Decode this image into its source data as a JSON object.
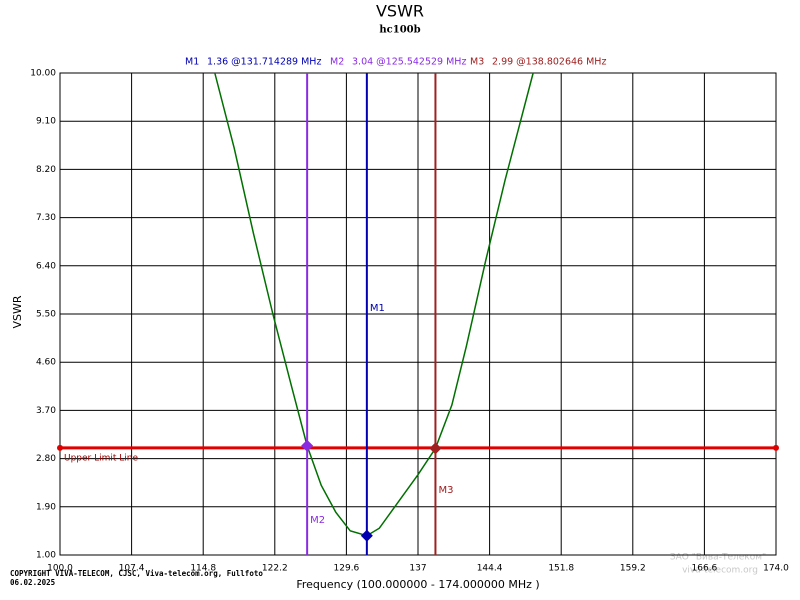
{
  "chart_data": {
    "type": "line",
    "title": "VSWR",
    "subtitle": "hc100b",
    "xlabel": "Frequency (100.000000 - 174.000000 MHz )",
    "ylabel": "VSWR",
    "xlim": [
      100,
      174
    ],
    "ylim": [
      1,
      10
    ],
    "xticks": [
      {
        "value": 100,
        "label": "100.0"
      },
      107.4,
      114.8,
      122.2,
      129.6,
      137,
      {
        "value": 144.4,
        "label": "144.4"
      },
      151.8,
      159.2,
      166.6,
      {
        "value": 174,
        "label": "174.0"
      }
    ],
    "yticks": [
      {
        "value": 1,
        "label": "1.00"
      },
      {
        "value": 1.9,
        "label": "1.90"
      },
      {
        "value": 2.8,
        "label": "2.80"
      },
      {
        "value": 3.7,
        "label": "3.70"
      },
      {
        "value": 4.6,
        "label": "4.60"
      },
      {
        "value": 5.5,
        "label": "5.50"
      },
      {
        "value": 6.4,
        "label": "6.40"
      },
      {
        "value": 7.3,
        "label": "7.30"
      },
      {
        "value": 8.2,
        "label": "8.20"
      },
      {
        "value": 9.1,
        "label": "9.10"
      },
      {
        "value": 10,
        "label": "10.00"
      }
    ],
    "grid": true,
    "series": [
      {
        "color": "#007000",
        "x": [
          116.0,
          118,
          120,
          122,
          124,
          125.54,
          127,
          128.5,
          130,
          131.71,
          133,
          135,
          137,
          138.8,
          140.5,
          142,
          144,
          146,
          148.9
        ],
        "values": [
          10,
          8.6,
          7.0,
          5.5,
          4.1,
          3.04,
          2.3,
          1.8,
          1.45,
          1.36,
          1.5,
          2.0,
          2.5,
          2.99,
          3.8,
          4.9,
          6.5,
          8.0,
          10
        ]
      }
    ],
    "markers": [
      {
        "name": "M1",
        "readout": "1.36 @131.714289 MHz",
        "x": 131.714289,
        "value": 1.36,
        "color": "#0000b0"
      },
      {
        "name": "M2",
        "readout": "3.04 @125.542529 MHz",
        "x": 125.542529,
        "value": 3.04,
        "color": "#8a2be2"
      },
      {
        "name": "M3",
        "readout": "2.99 @138.802646 MHz",
        "x": 138.802646,
        "value": 2.99,
        "color": "#a02020"
      }
    ],
    "limit_line": {
      "label": "Upper Limit Line",
      "value": 3.0,
      "color": "#e00000"
    },
    "footer": [
      "COPYRIGHT VIVA-TELECOM, CJSC, Viva-telecom.org, Fullfoto",
      "06.02.2025"
    ],
    "watermark": [
      "ЗАО \"Вива-Телеком\"",
      "viva-telecom.org"
    ]
  }
}
